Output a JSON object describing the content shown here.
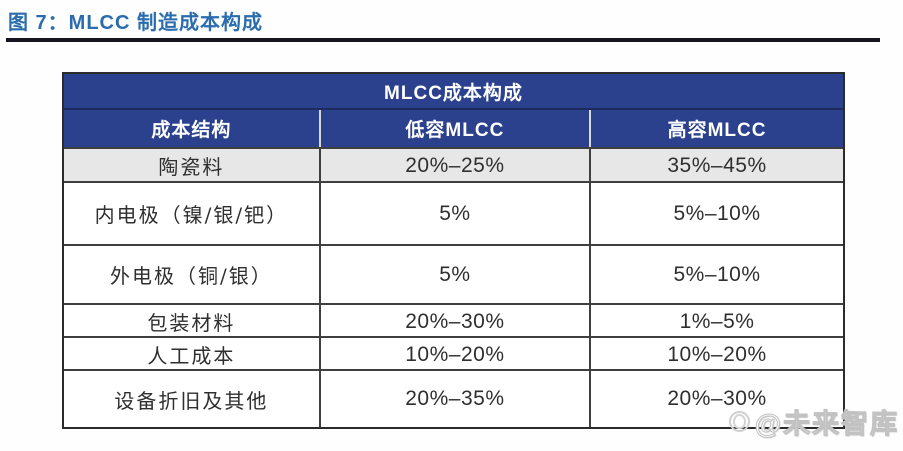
{
  "figure": {
    "title": "图 7：MLCC 制造成本构成"
  },
  "table": {
    "title": "MLCC成本构成",
    "columns": [
      "成本结构",
      "低容MLCC",
      "高容MLCC"
    ],
    "rows": [
      {
        "label": "陶瓷料",
        "low": "20%–25%",
        "high": "35%–45%"
      },
      {
        "label": "内电极（镍/银/钯）",
        "low": "5%",
        "high": "5%–10%"
      },
      {
        "label": "外电极（铜/银）",
        "low": "5%",
        "high": "5%–10%"
      },
      {
        "label": "包装材料",
        "low": "20%–30%",
        "high": "1%–5%"
      },
      {
        "label": "人工成本",
        "low": "10%–20%",
        "high": "10%–20%"
      },
      {
        "label": "设备折旧及其他",
        "low": "20%–35%",
        "high": "20%–30%"
      }
    ]
  },
  "watermark": {
    "text": "@未来智库",
    "logo_icon": "baidu-app-icon"
  },
  "colors": {
    "header_bg": "#2b418e",
    "figure_title": "#2a6cae",
    "alt_row_bg": "#e7e7e7",
    "title_rule": "#14141e",
    "table_border": "#2b2b2b"
  },
  "chart_data": {
    "type": "table",
    "title": "MLCC成本构成",
    "columns": [
      "成本结构",
      "低容MLCC",
      "高容MLCC"
    ],
    "rows": [
      [
        "陶瓷料",
        "20%–25%",
        "35%–45%"
      ],
      [
        "内电极（镍/银/钯）",
        "5%",
        "5%–10%"
      ],
      [
        "外电极（铜/银）",
        "5%",
        "5%–10%"
      ],
      [
        "包装材料",
        "20%–30%",
        "1%–5%"
      ],
      [
        "人工成本",
        "10%–20%",
        "10%–20%"
      ],
      [
        "设备折旧及其他",
        "20%–35%",
        "20%–30%"
      ]
    ]
  }
}
